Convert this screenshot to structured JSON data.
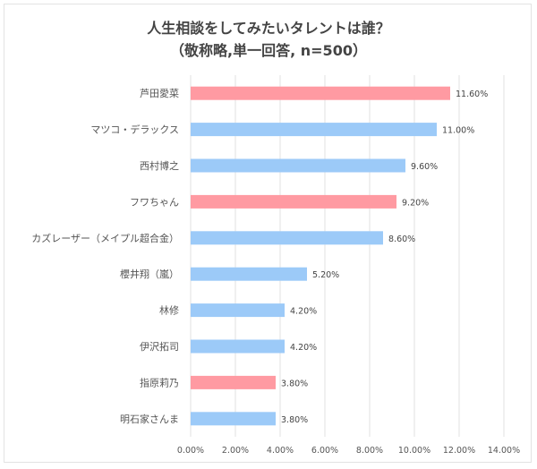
{
  "chart_data": {
    "type": "bar",
    "orientation": "horizontal",
    "title": "人生相談をしてみたいタレントは誰？",
    "subtitle": "（敬称略,単一回答, n=500）",
    "xlabel": "",
    "ylabel": "",
    "xlim": [
      0,
      14
    ],
    "x_ticks": [
      0,
      2,
      4,
      6,
      8,
      10,
      12,
      14
    ],
    "x_tick_labels": [
      "0.00%",
      "2.00%",
      "4.00%",
      "6.00%",
      "8.00%",
      "10.00%",
      "12.00%",
      "14.00%"
    ],
    "grid": true,
    "categories": [
      "芦田愛菜",
      "マツコ・デラックス",
      "西村博之",
      "フワちゃん",
      "カズレーザー（メイプル超合金）",
      "櫻井翔（嵐）",
      "林修",
      "伊沢拓司",
      "指原莉乃",
      "明石家さんま"
    ],
    "values": [
      11.6,
      11.0,
      9.6,
      9.2,
      8.6,
      5.2,
      4.2,
      4.2,
      3.8,
      3.8
    ],
    "value_labels": [
      "11.60%",
      "11.00%",
      "9.60%",
      "9.20%",
      "8.60%",
      "5.20%",
      "4.20%",
      "4.20%",
      "3.80%",
      "3.80%"
    ],
    "bar_colors": [
      "#ff9aa2",
      "#9ccaf8",
      "#9ccaf8",
      "#ff9aa2",
      "#9ccaf8",
      "#9ccaf8",
      "#9ccaf8",
      "#9ccaf8",
      "#ff9aa2",
      "#9ccaf8"
    ],
    "legend": "none"
  },
  "colors": {
    "female": "#ff9aa2",
    "male": "#9ccaf8",
    "grid": "#e2e2e2"
  }
}
